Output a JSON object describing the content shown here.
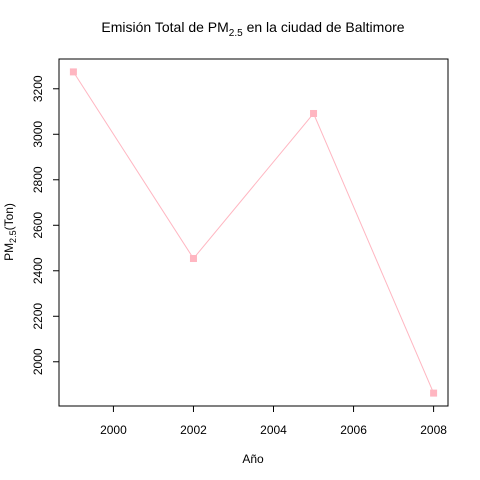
{
  "chart_data": {
    "type": "line",
    "title_main": "Emisión Total de PM",
    "title_sub": "2.5",
    "title_rest": " en la ciudad de Baltimore",
    "xlabel": "Año",
    "ylabel_main": "PM",
    "ylabel_sub": "2.5",
    "ylabel_rest": "(Ton)",
    "x": [
      1999,
      2002,
      2005,
      2008
    ],
    "values": [
      3274.18,
      2453.92,
      3091.35,
      1862.28
    ],
    "xlim": [
      1999,
      2008
    ],
    "ylim": [
      1862.28,
      3274.18
    ],
    "x_ticks": [
      2000,
      2002,
      2004,
      2006,
      2008
    ],
    "y_ticks": [
      2000,
      2200,
      2400,
      2600,
      2800,
      3000,
      3200
    ],
    "series_color": "#FFB6C1",
    "line_color": "#FFB6C1",
    "grid": false,
    "marker": "square"
  }
}
